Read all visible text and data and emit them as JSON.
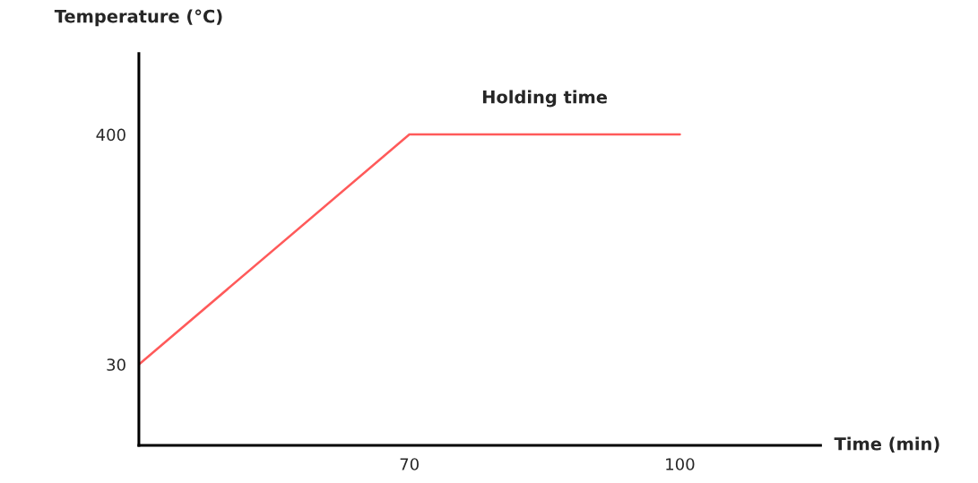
{
  "chart_data": {
    "type": "line",
    "xlabel": "Time (min)",
    "ylabel": "Temperature (°C)",
    "categories": [
      null,
      "70",
      "100"
    ],
    "series": [
      {
        "color": "#ff5a5a",
        "values": [
          30,
          400,
          400
        ]
      }
    ],
    "ylim": [
      -100,
      530
    ],
    "yticks": [
      30,
      400
    ],
    "annotations": [
      "Holding time"
    ],
    "grid": false,
    "legend": false
  }
}
